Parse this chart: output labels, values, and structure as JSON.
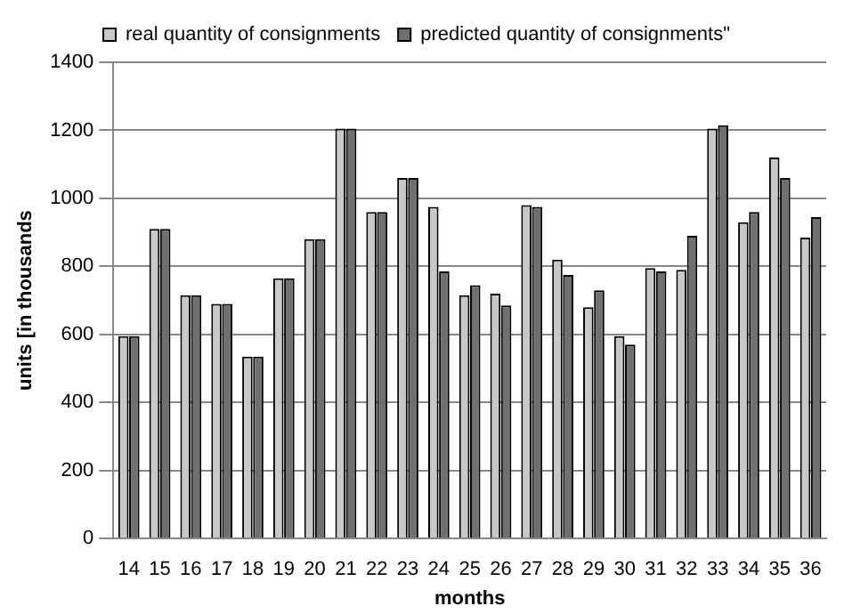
{
  "chart_data": {
    "type": "bar",
    "xlabel": "months",
    "ylabel": "units [in thousands",
    "categories": [
      "14",
      "15",
      "16",
      "17",
      "18",
      "19",
      "20",
      "21",
      "22",
      "23",
      "24",
      "25",
      "26",
      "27",
      "28",
      "29",
      "30",
      "31",
      "32",
      "33",
      "34",
      "35",
      "36"
    ],
    "series": [
      {
        "name": "real quantity of consignments",
        "color": "#c8c8c8",
        "values": [
          595,
          910,
          715,
          690,
          535,
          765,
          880,
          1205,
          960,
          1060,
          975,
          715,
          720,
          980,
          820,
          680,
          595,
          795,
          790,
          1205,
          930,
          1120,
          885
        ]
      },
      {
        "name": "predicted quantity of consignments\"",
        "color": "#707070",
        "values": [
          595,
          910,
          715,
          690,
          535,
          765,
          880,
          1205,
          960,
          1060,
          785,
          745,
          685,
          975,
          775,
          730,
          570,
          785,
          890,
          1215,
          960,
          1060,
          945
        ]
      }
    ],
    "ylim": [
      0,
      1400
    ],
    "yticks": [
      0,
      200,
      400,
      600,
      800,
      1000,
      1200,
      1400
    ],
    "grid": "y",
    "legend": "top"
  }
}
